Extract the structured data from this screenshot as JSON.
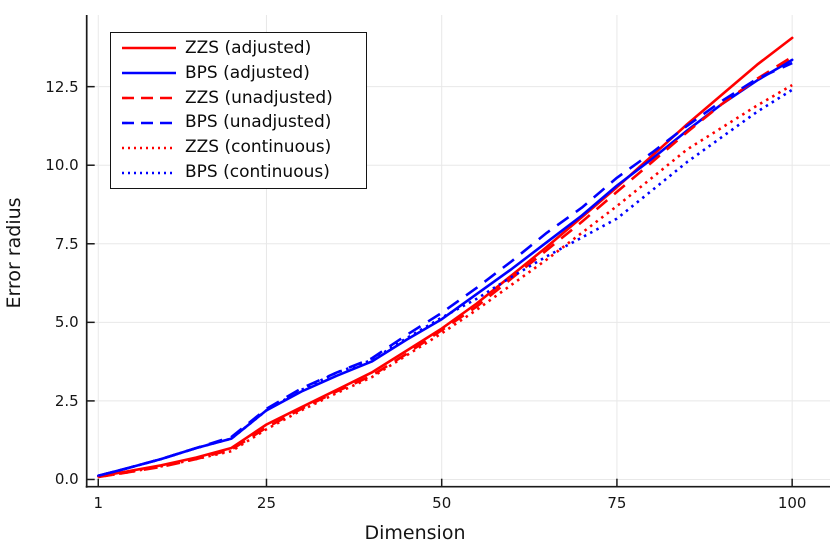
{
  "figure": {
    "background": "#ffffff",
    "text_color": "#151515",
    "grid_color": "#e8e8e8",
    "spine_color": "#1a1a1a"
  },
  "chart_data": {
    "type": "line",
    "title": "",
    "xlabel": "Dimension",
    "ylabel": "Error radius",
    "grid": true,
    "legend_position": "top-left",
    "xlim": [
      -0.65,
      105.4
    ],
    "ylim": [
      -0.23,
      14.78
    ],
    "xticks": {
      "values": [
        1,
        25,
        50,
        75,
        100
      ],
      "labels": [
        "1",
        "25",
        "50",
        "75",
        "100"
      ]
    },
    "yticks": {
      "values": [
        0,
        2.5,
        5,
        7.5,
        10,
        12.5
      ],
      "labels": [
        "0.0",
        "2.5",
        "5.0",
        "7.5",
        "10.0",
        "12.5"
      ]
    },
    "x": [
      1,
      5,
      10,
      15,
      20,
      25,
      30,
      35,
      40,
      45,
      50,
      55,
      60,
      65,
      70,
      75,
      80,
      85,
      90,
      95,
      100
    ],
    "series": [
      {
        "name": "ZZS (adjusted)",
        "color": "#ff0000",
        "style": "solid",
        "values": [
          0.1,
          0.25,
          0.45,
          0.7,
          1.0,
          1.75,
          2.3,
          2.85,
          3.4,
          4.1,
          4.8,
          5.6,
          6.5,
          7.4,
          8.35,
          9.3,
          10.3,
          11.3,
          12.25,
          13.2,
          14.05
        ]
      },
      {
        "name": "BPS (adjusted)",
        "color": "#0000ff",
        "style": "solid",
        "values": [
          0.12,
          0.35,
          0.65,
          1.0,
          1.3,
          2.2,
          2.8,
          3.3,
          3.75,
          4.45,
          5.1,
          5.9,
          6.7,
          7.55,
          8.4,
          9.35,
          10.2,
          11.1,
          11.95,
          12.7,
          13.35
        ]
      },
      {
        "name": "ZZS (unadjusted)",
        "color": "#ff0000",
        "style": "dash",
        "values": [
          0.08,
          0.22,
          0.4,
          0.65,
          0.95,
          1.65,
          2.25,
          2.8,
          3.3,
          4.0,
          4.75,
          5.5,
          6.4,
          7.3,
          8.2,
          9.15,
          10.1,
          11.05,
          11.95,
          12.75,
          13.45
        ]
      },
      {
        "name": "BPS (unadjusted)",
        "color": "#0000ff",
        "style": "dash",
        "values": [
          0.12,
          0.35,
          0.65,
          1.0,
          1.35,
          2.25,
          2.9,
          3.4,
          3.85,
          4.6,
          5.3,
          6.1,
          6.95,
          7.85,
          8.65,
          9.6,
          10.4,
          11.25,
          12.05,
          12.75,
          13.25
        ]
      },
      {
        "name": "ZZS (continuous)",
        "color": "#ff0000",
        "style": "dot",
        "values": [
          0.08,
          0.22,
          0.42,
          0.65,
          0.9,
          1.6,
          2.2,
          2.75,
          3.25,
          3.95,
          4.65,
          5.4,
          6.2,
          7.0,
          7.85,
          8.7,
          9.6,
          10.5,
          11.2,
          11.9,
          12.55
        ]
      },
      {
        "name": "BPS (continuous)",
        "color": "#0000ff",
        "style": "dot",
        "values": [
          0.12,
          0.35,
          0.65,
          1.0,
          1.3,
          2.2,
          2.85,
          3.4,
          3.8,
          4.5,
          5.15,
          5.75,
          6.45,
          7.1,
          7.7,
          8.3,
          9.2,
          10.1,
          10.9,
          11.7,
          12.4
        ]
      }
    ]
  }
}
